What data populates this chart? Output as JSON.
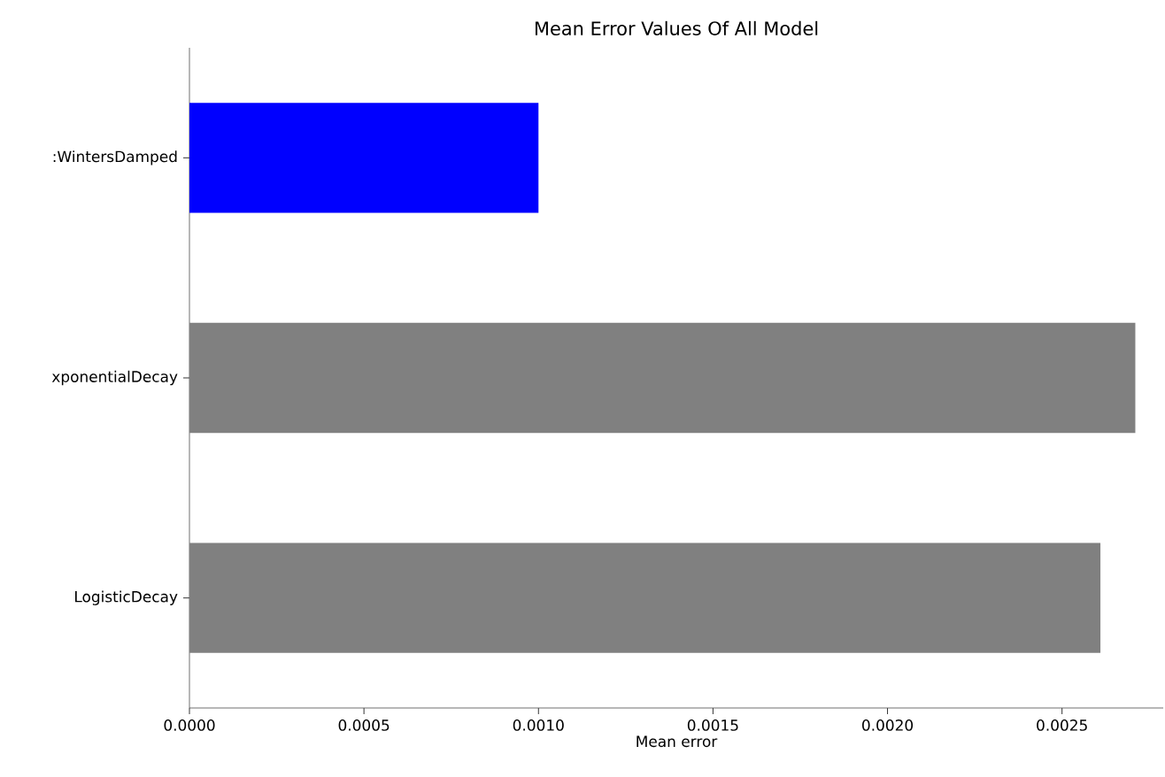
{
  "chart_data": {
    "type": "bar",
    "orientation": "horizontal",
    "title": "Mean Error Values Of All Model",
    "xlabel": "Mean error",
    "categories": [
      ":WintersDamped",
      "xponentialDecay",
      "LogisticDecay"
    ],
    "values": [
      0.001,
      0.00271,
      0.00261
    ],
    "colors": [
      "#0000ff",
      "#808080",
      "#808080"
    ],
    "xlim": [
      0,
      0.00279
    ],
    "xticks": [
      {
        "value": 0,
        "label": "0.0000"
      },
      {
        "value": 0.0005,
        "label": "0.0005"
      },
      {
        "value": 0.001,
        "label": "0.0010"
      },
      {
        "value": 0.0015,
        "label": "0.0015"
      },
      {
        "value": 0.002,
        "label": "0.0020"
      },
      {
        "value": 0.0025,
        "label": "0.0025"
      }
    ]
  }
}
